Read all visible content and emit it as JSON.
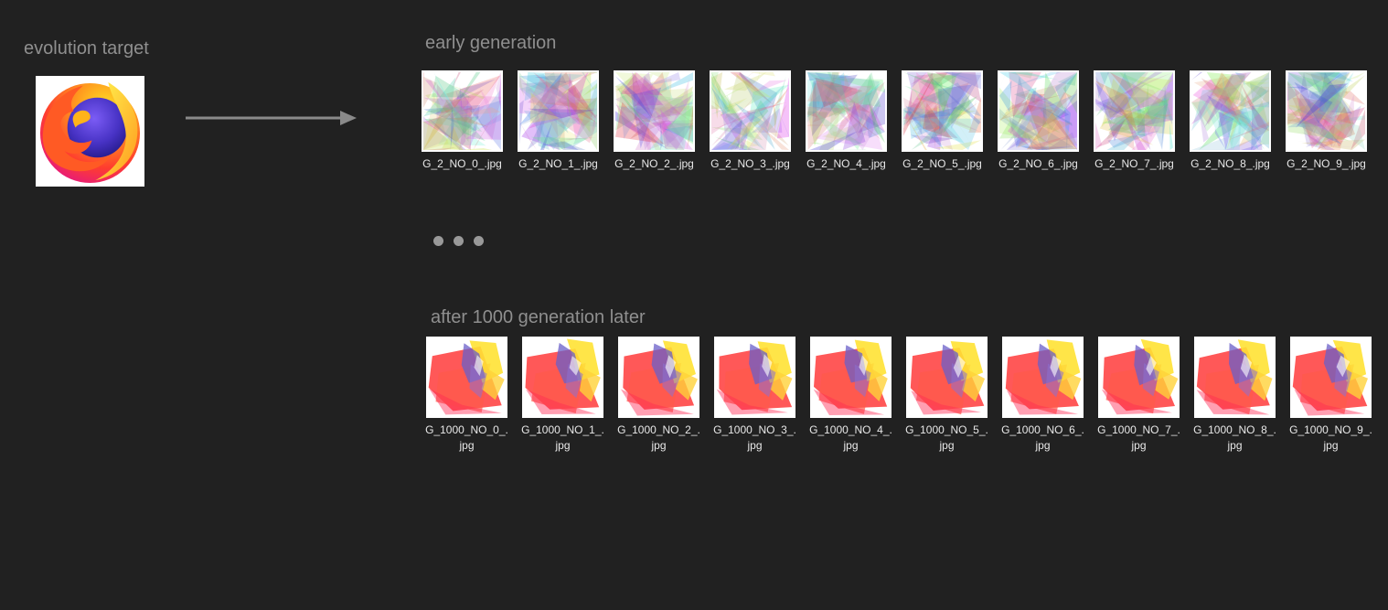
{
  "target": {
    "title": "evolution target",
    "image_icon": "firefox-logo-icon"
  },
  "arrow_icon": "right-arrow-icon",
  "early": {
    "title": "early generation",
    "files": [
      {
        "name": "G_2_NO_0_.jpg"
      },
      {
        "name": "G_2_NO_1_.jpg"
      },
      {
        "name": "G_2_NO_2_.jpg"
      },
      {
        "name": "G_2_NO_3_.jpg"
      },
      {
        "name": "G_2_NO_4_.jpg"
      },
      {
        "name": "G_2_NO_5_.jpg"
      },
      {
        "name": "G_2_NO_6_.jpg"
      },
      {
        "name": "G_2_NO_7_.jpg"
      },
      {
        "name": "G_2_NO_8_.jpg"
      },
      {
        "name": "G_2_NO_9_.jpg"
      }
    ]
  },
  "ellipsis_icon": "ellipsis-icon",
  "later": {
    "title": "after 1000 generation later",
    "files": [
      {
        "name": "G_1000_NO_0_.jpg"
      },
      {
        "name": "G_1000_NO_1_.jpg"
      },
      {
        "name": "G_1000_NO_2_.jpg"
      },
      {
        "name": "G_1000_NO_3_.jpg"
      },
      {
        "name": "G_1000_NO_4_.jpg"
      },
      {
        "name": "G_1000_NO_5_.jpg"
      },
      {
        "name": "G_1000_NO_6_.jpg"
      },
      {
        "name": "G_1000_NO_7_.jpg"
      },
      {
        "name": "G_1000_NO_8_.jpg"
      },
      {
        "name": "G_1000_NO_9_.jpg"
      }
    ]
  },
  "colors": {
    "background": "#212121",
    "title_text": "#8f8f8f",
    "file_text": "#e8e8e8",
    "arrow": "#8a8a8a",
    "dots": "#999999"
  }
}
